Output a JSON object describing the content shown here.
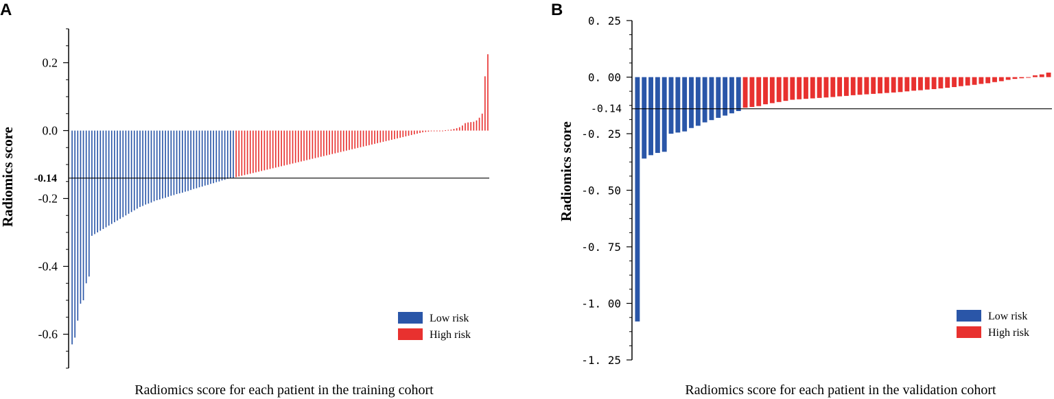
{
  "chart_data": [
    {
      "panel": "A",
      "type": "bar",
      "title": "",
      "xlabel": "Radiomics score for each patient in the training cohort",
      "ylabel": "Radiomics score",
      "ylim": [
        -0.7,
        0.3
      ],
      "yticks": [
        0.2,
        0.0,
        -0.2,
        -0.4,
        -0.6
      ],
      "ytick_labels": [
        "0.2",
        "0.0",
        "-0.2",
        "-0.4",
        "-0.6"
      ],
      "threshold": -0.14,
      "threshold_label": "-0.14",
      "legend": [
        "Low risk",
        "High risk"
      ],
      "legend_position": "bottom-right",
      "colors": {
        "low": "#2a56a8",
        "high": "#e8312f"
      },
      "series": [
        {
          "name": "Low risk",
          "values": [
            -0.63,
            -0.61,
            -0.56,
            -0.51,
            -0.5,
            -0.45,
            -0.43,
            -0.31,
            -0.305,
            -0.3,
            -0.295,
            -0.29,
            -0.285,
            -0.28,
            -0.275,
            -0.27,
            -0.265,
            -0.26,
            -0.255,
            -0.25,
            -0.245,
            -0.24,
            -0.235,
            -0.23,
            -0.225,
            -0.222,
            -0.218,
            -0.215,
            -0.212,
            -0.208,
            -0.205,
            -0.203,
            -0.2,
            -0.198,
            -0.195,
            -0.192,
            -0.19,
            -0.187,
            -0.185,
            -0.183,
            -0.18,
            -0.178,
            -0.175,
            -0.172,
            -0.17,
            -0.167,
            -0.165,
            -0.162,
            -0.16,
            -0.157,
            -0.155,
            -0.152,
            -0.15,
            -0.147,
            -0.145,
            -0.142,
            -0.14,
            -0.14
          ]
        },
        {
          "name": "High risk",
          "values": [
            -0.137,
            -0.135,
            -0.133,
            -0.131,
            -0.129,
            -0.127,
            -0.125,
            -0.123,
            -0.121,
            -0.119,
            -0.117,
            -0.115,
            -0.113,
            -0.111,
            -0.109,
            -0.107,
            -0.105,
            -0.103,
            -0.101,
            -0.099,
            -0.097,
            -0.095,
            -0.093,
            -0.091,
            -0.089,
            -0.087,
            -0.085,
            -0.083,
            -0.081,
            -0.079,
            -0.077,
            -0.075,
            -0.073,
            -0.071,
            -0.069,
            -0.067,
            -0.065,
            -0.063,
            -0.061,
            -0.059,
            -0.057,
            -0.055,
            -0.053,
            -0.051,
            -0.049,
            -0.047,
            -0.045,
            -0.043,
            -0.041,
            -0.039,
            -0.037,
            -0.035,
            -0.033,
            -0.031,
            -0.029,
            -0.027,
            -0.025,
            -0.023,
            -0.021,
            -0.019,
            -0.017,
            -0.015,
            -0.013,
            -0.011,
            -0.009,
            -0.007,
            -0.005,
            -0.004,
            -0.003,
            -0.002,
            -0.002,
            -0.001,
            0,
            0,
            0.001,
            0.002,
            0.003,
            0.005,
            0.007,
            0.01,
            0.015,
            0.022,
            0.024,
            0.025,
            0.026,
            0.03,
            0.038,
            0.05,
            0.16,
            0.225
          ]
        }
      ]
    },
    {
      "panel": "B",
      "type": "bar",
      "title": "",
      "xlabel": "Radiomics score for each patient in the validation cohort",
      "ylabel": "Radiomics score",
      "ylim": [
        -1.25,
        0.25
      ],
      "yticks": [
        0.25,
        0.0,
        -0.25,
        -0.5,
        -0.75,
        -1.0,
        -1.25
      ],
      "ytick_labels": [
        "0. 25",
        "0. 00",
        "-0. 25",
        "-0. 50",
        "-0. 75",
        "-1. 00",
        "-1. 25"
      ],
      "threshold": -0.14,
      "threshold_label": "-0.14",
      "legend": [
        "Low risk",
        "High risk"
      ],
      "legend_position": "bottom-right",
      "colors": {
        "low": "#2a56a8",
        "high": "#e8312f"
      },
      "series": [
        {
          "name": "Low risk",
          "values": [
            -1.08,
            -0.36,
            -0.345,
            -0.335,
            -0.33,
            -0.25,
            -0.245,
            -0.24,
            -0.225,
            -0.215,
            -0.2,
            -0.19,
            -0.18,
            -0.17,
            -0.16,
            -0.15
          ]
        },
        {
          "name": "High risk",
          "values": [
            -0.135,
            -0.132,
            -0.128,
            -0.12,
            -0.115,
            -0.11,
            -0.105,
            -0.1,
            -0.098,
            -0.096,
            -0.094,
            -0.092,
            -0.09,
            -0.088,
            -0.085,
            -0.083,
            -0.08,
            -0.078,
            -0.076,
            -0.074,
            -0.072,
            -0.07,
            -0.068,
            -0.066,
            -0.063,
            -0.06,
            -0.058,
            -0.055,
            -0.053,
            -0.05,
            -0.047,
            -0.044,
            -0.04,
            -0.037,
            -0.034,
            -0.03,
            -0.027,
            -0.022,
            -0.018,
            -0.012,
            -0.008,
            -0.005,
            -0.003,
            0.008,
            0.012,
            0.02
          ]
        }
      ]
    }
  ]
}
